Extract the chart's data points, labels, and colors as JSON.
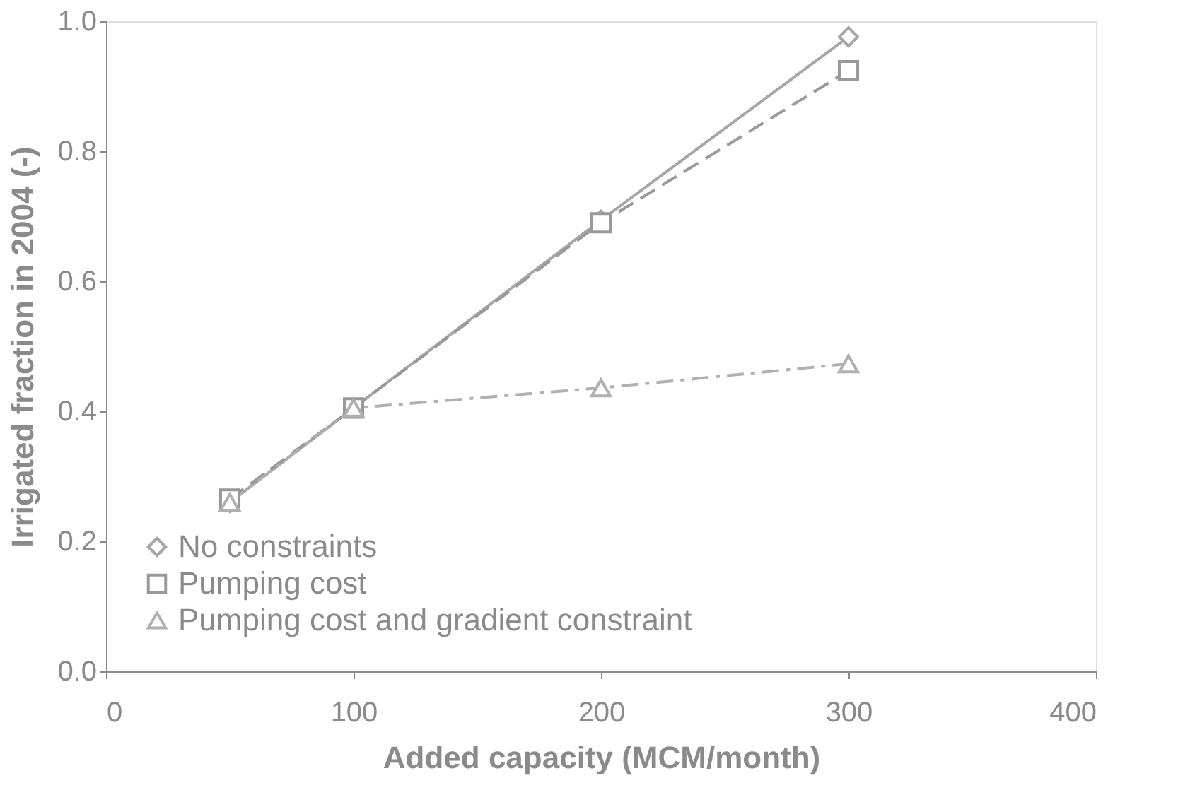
{
  "chart_data": {
    "type": "line",
    "xlabel": "Added capacity (MCM/month)",
    "ylabel": "Irrigated fraction in 2004 (-)",
    "x": [
      50,
      100,
      200,
      300
    ],
    "series": [
      {
        "name": "No constraints",
        "color": "#a6a6a6",
        "marker": "diamond",
        "line_style": "solid",
        "values": [
          0.26,
          0.405,
          0.694,
          0.976
        ]
      },
      {
        "name": "Pumping cost",
        "color": "#999999",
        "marker": "square",
        "line_style": "dashed",
        "values": [
          0.265,
          0.405,
          0.69,
          0.924
        ]
      },
      {
        "name": "Pumping cost and gradient constraint",
        "color": "#b0b0b0",
        "marker": "triangle",
        "line_style": "dotted",
        "values": [
          0.26,
          0.405,
          0.436,
          0.473
        ]
      }
    ],
    "xlim": [
      0,
      400
    ],
    "xticks": [
      0,
      100,
      200,
      300,
      400
    ],
    "ylim": [
      0,
      1
    ],
    "yticks": [
      {
        "value": 0,
        "label": "0.0"
      },
      0.2,
      0.4,
      0.6,
      0.8,
      {
        "value": 1,
        "label": "1.0"
      }
    ],
    "grid": false,
    "legend": "bottom left"
  }
}
